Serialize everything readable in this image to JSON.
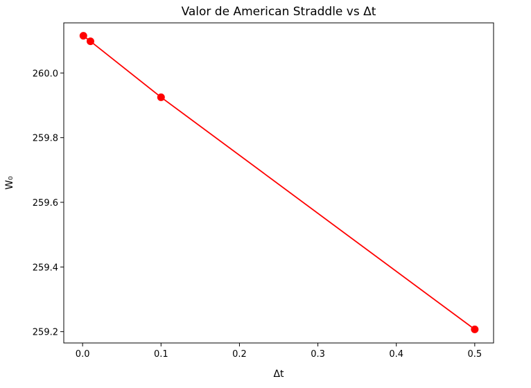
{
  "chart_data": {
    "type": "line",
    "title": "Valor de American Straddle vs Δt",
    "xlabel": "Δt",
    "ylabel": "W₀",
    "x_ticks": [
      0.0,
      0.1,
      0.2,
      0.3,
      0.4,
      0.5
    ],
    "x_tick_labels": [
      "0.0",
      "0.1",
      "0.2",
      "0.3",
      "0.4",
      "0.5"
    ],
    "y_ticks": [
      259.2,
      259.4,
      259.6,
      259.8,
      260.0
    ],
    "y_tick_labels": [
      "259.2",
      "259.4",
      "259.6",
      "259.8",
      "260.0"
    ],
    "xlim": [
      -0.024,
      0.524
    ],
    "ylim": [
      259.165,
      260.155
    ],
    "grid": false,
    "series": [
      {
        "color": "#ff0000",
        "marker": "circle",
        "x": [
          0.001,
          0.01,
          0.1,
          0.5
        ],
        "y": [
          260.115,
          260.098,
          259.925,
          259.207
        ]
      }
    ]
  }
}
